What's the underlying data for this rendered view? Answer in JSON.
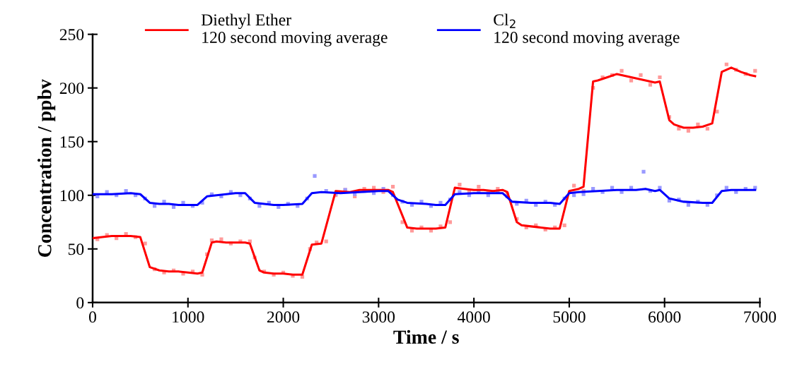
{
  "chart_data": {
    "type": "line",
    "xlabel": "Time / s",
    "ylabel": "Concentration / ppbv",
    "xlim": [
      0,
      7000
    ],
    "ylim": [
      0,
      250
    ],
    "xticks": [
      0,
      1000,
      2000,
      3000,
      4000,
      5000,
      6000,
      7000
    ],
    "yticks": [
      0,
      50,
      100,
      150,
      200,
      250
    ],
    "grid": false,
    "legend": "top",
    "marker": "none",
    "line_style": "solid",
    "series": [
      {
        "type": "scatter",
        "color": "#ff9a9a",
        "marker": "square",
        "x": [
          50,
          150,
          250,
          350,
          450,
          550,
          650,
          750,
          850,
          950,
          1050,
          1150,
          1200,
          1250,
          1350,
          1450,
          1550,
          1650,
          1700,
          1800,
          1900,
          2000,
          2100,
          2200,
          2280,
          2350,
          2450,
          2550,
          2650,
          2750,
          2850,
          2950,
          3050,
          3150,
          3250,
          3350,
          3450,
          3550,
          3650,
          3750,
          3850,
          3950,
          4050,
          4150,
          4250,
          4350,
          4450,
          4550,
          4650,
          4750,
          4850,
          4950,
          5050,
          5150,
          5250,
          5350,
          5450,
          5550,
          5650,
          5750,
          5850,
          5950,
          6050,
          6150,
          6250,
          6350,
          6450,
          6550,
          6650,
          6750,
          6850,
          6950
        ],
        "values": [
          59,
          63,
          60,
          64,
          61,
          55,
          31,
          28,
          30,
          27,
          29,
          26,
          45,
          58,
          59,
          55,
          57,
          57,
          42,
          29,
          26,
          28,
          25,
          24,
          50,
          56,
          57,
          100,
          105,
          99,
          106,
          107,
          103,
          108,
          75,
          67,
          70,
          67,
          71,
          75,
          110,
          104,
          108,
          102,
          106,
          101,
          78,
          70,
          72,
          68,
          70,
          72,
          109,
          104,
          200,
          210,
          212,
          216,
          207,
          212,
          203,
          210,
          173,
          162,
          160,
          166,
          162,
          178,
          222,
          217,
          213,
          216
        ]
      },
      {
        "type": "scatter",
        "color": "#9a9aff",
        "marker": "square",
        "x": [
          50,
          150,
          250,
          350,
          450,
          550,
          650,
          750,
          850,
          950,
          1050,
          1150,
          1250,
          1350,
          1450,
          1550,
          1650,
          1750,
          1850,
          1950,
          2050,
          2150,
          2250,
          2330,
          2450,
          2550,
          2650,
          2750,
          2850,
          2950,
          3050,
          3150,
          3250,
          3350,
          3450,
          3550,
          3650,
          3750,
          3850,
          3950,
          4050,
          4150,
          4250,
          4350,
          4450,
          4550,
          4650,
          4750,
          4850,
          4950,
          5050,
          5150,
          5250,
          5350,
          5450,
          5550,
          5650,
          5780,
          5850,
          5950,
          6050,
          6150,
          6250,
          6350,
          6450,
          6550,
          6650,
          6750,
          6850,
          6950
        ],
        "values": [
          99,
          103,
          100,
          104,
          100,
          97,
          90,
          94,
          89,
          93,
          90,
          93,
          101,
          99,
          103,
          100,
          97,
          90,
          93,
          89,
          92,
          90,
          97,
          118,
          104,
          101,
          105,
          101,
          104,
          102,
          106,
          100,
          94,
          91,
          94,
          90,
          93,
          96,
          103,
          100,
          104,
          100,
          103,
          99,
          92,
          95,
          91,
          94,
          91,
          97,
          100,
          101,
          106,
          103,
          107,
          103,
          107,
          122,
          104,
          107,
          95,
          96,
          91,
          94,
          91,
          100,
          107,
          103,
          106,
          107
        ]
      },
      {
        "name": "Diethyl Ether\n120 second moving average",
        "color": "#ff0000",
        "x": [
          0,
          100,
          200,
          300,
          400,
          500,
          600,
          700,
          800,
          900,
          1000,
          1100,
          1150,
          1250,
          1300,
          1400,
          1500,
          1600,
          1650,
          1750,
          1800,
          1900,
          2000,
          2100,
          2200,
          2300,
          2400,
          2550,
          2700,
          2800,
          3000,
          3100,
          3150,
          3300,
          3400,
          3500,
          3600,
          3700,
          3800,
          3900,
          4000,
          4100,
          4200,
          4300,
          4350,
          4450,
          4500,
          4600,
          4700,
          4800,
          4900,
          5000,
          5100,
          5150,
          5250,
          5300,
          5400,
          5500,
          5600,
          5700,
          5800,
          5900,
          5950,
          6050,
          6100,
          6200,
          6300,
          6400,
          6500,
          6600,
          6700,
          6800,
          6900,
          6950
        ],
        "values": [
          60,
          61,
          62,
          62,
          62,
          61,
          33,
          30,
          29,
          29,
          28,
          27,
          28,
          56,
          57,
          56,
          56,
          56,
          55,
          30,
          28,
          27,
          27,
          26,
          26,
          54,
          55,
          104,
          103,
          105,
          105,
          105,
          103,
          70,
          69,
          69,
          69,
          70,
          107,
          106,
          105,
          105,
          104,
          105,
          103,
          75,
          72,
          71,
          70,
          69,
          69,
          104,
          106,
          108,
          206,
          207,
          210,
          213,
          211,
          209,
          207,
          205,
          206,
          170,
          166,
          163,
          163,
          164,
          167,
          215,
          219,
          215,
          212,
          211
        ]
      },
      {
        "name": "Cl$_{2}$\n120 second moving average",
        "color": "#0000ff",
        "x": [
          0,
          200,
          400,
          500,
          600,
          700,
          800,
          900,
          1000,
          1100,
          1200,
          1300,
          1400,
          1500,
          1600,
          1700,
          1800,
          1900,
          2000,
          2200,
          2300,
          2400,
          2600,
          2800,
          3000,
          3100,
          3200,
          3300,
          3500,
          3600,
          3700,
          3800,
          4000,
          4200,
          4300,
          4400,
          4600,
          4800,
          4900,
          5000,
          5100,
          5300,
          5500,
          5700,
          5800,
          5900,
          5950,
          6050,
          6200,
          6400,
          6500,
          6600,
          6700,
          6900,
          6950
        ],
        "values": [
          101,
          101,
          102,
          101,
          93,
          92,
          92,
          91,
          91,
          91,
          99,
          100,
          101,
          102,
          102,
          93,
          92,
          91,
          91,
          92,
          102,
          103,
          102,
          103,
          104,
          104,
          96,
          93,
          92,
          91,
          91,
          101,
          102,
          102,
          102,
          94,
          93,
          93,
          92,
          102,
          103,
          104,
          105,
          105,
          106,
          104,
          105,
          97,
          94,
          93,
          93,
          104,
          105,
          105,
          105
        ]
      }
    ]
  }
}
